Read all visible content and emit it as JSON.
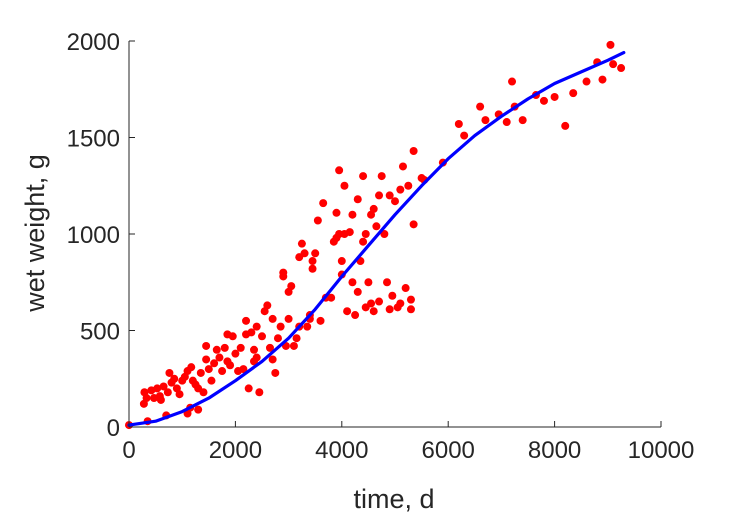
{
  "chart_data": {
    "type": "scatter",
    "xlabel": "time, d",
    "ylabel": "wet weight, g",
    "xlim": [
      0,
      10000
    ],
    "ylim": [
      0,
      2000
    ],
    "xticks": [
      0,
      2000,
      4000,
      6000,
      8000,
      10000
    ],
    "yticks": [
      0,
      500,
      1000,
      1500,
      2000
    ],
    "xtick_labels": [
      "0",
      "2000",
      "4000",
      "6000",
      "8000",
      "10000"
    ],
    "ytick_labels": [
      "0",
      "500",
      "1000",
      "1500",
      "2000"
    ],
    "grid": false,
    "series": [
      {
        "kind": "scatter",
        "color": "#ff0000",
        "points": [
          [
            0,
            10
          ],
          [
            280,
            120
          ],
          [
            290,
            180
          ],
          [
            330,
            150
          ],
          [
            350,
            30
          ],
          [
            420,
            190
          ],
          [
            470,
            150
          ],
          [
            530,
            200
          ],
          [
            580,
            160
          ],
          [
            600,
            140
          ],
          [
            650,
            210
          ],
          [
            700,
            60
          ],
          [
            730,
            180
          ],
          [
            760,
            280
          ],
          [
            800,
            230
          ],
          [
            850,
            250
          ],
          [
            900,
            200
          ],
          [
            950,
            170
          ],
          [
            1000,
            240
          ],
          [
            1050,
            260
          ],
          [
            1100,
            290
          ],
          [
            1100,
            70
          ],
          [
            1150,
            100
          ],
          [
            1170,
            310
          ],
          [
            1200,
            240
          ],
          [
            1250,
            220
          ],
          [
            1300,
            90
          ],
          [
            1300,
            200
          ],
          [
            1350,
            280
          ],
          [
            1400,
            180
          ],
          [
            1450,
            350
          ],
          [
            1450,
            420
          ],
          [
            1500,
            300
          ],
          [
            1550,
            240
          ],
          [
            1600,
            330
          ],
          [
            1650,
            400
          ],
          [
            1700,
            360
          ],
          [
            1750,
            290
          ],
          [
            1800,
            410
          ],
          [
            1850,
            480
          ],
          [
            1850,
            340
          ],
          [
            1900,
            320
          ],
          [
            1950,
            470
          ],
          [
            2000,
            380
          ],
          [
            2050,
            290
          ],
          [
            2100,
            410
          ],
          [
            2150,
            300
          ],
          [
            2200,
            480
          ],
          [
            2200,
            550
          ],
          [
            2250,
            200
          ],
          [
            2300,
            490
          ],
          [
            2350,
            340
          ],
          [
            2350,
            400
          ],
          [
            2400,
            520
          ],
          [
            2400,
            360
          ],
          [
            2450,
            180
          ],
          [
            2500,
            470
          ],
          [
            2550,
            600
          ],
          [
            2600,
            630
          ],
          [
            2650,
            410
          ],
          [
            2700,
            560
          ],
          [
            2700,
            350
          ],
          [
            2750,
            280
          ],
          [
            2800,
            460
          ],
          [
            2850,
            520
          ],
          [
            2900,
            800
          ],
          [
            2900,
            780
          ],
          [
            2950,
            420
          ],
          [
            3000,
            700
          ],
          [
            3000,
            560
          ],
          [
            3050,
            730
          ],
          [
            3100,
            420
          ],
          [
            3150,
            460
          ],
          [
            3200,
            520
          ],
          [
            3200,
            880
          ],
          [
            3250,
            950
          ],
          [
            3300,
            900
          ],
          [
            3350,
            520
          ],
          [
            3400,
            560
          ],
          [
            3400,
            580
          ],
          [
            3450,
            820
          ],
          [
            3450,
            860
          ],
          [
            3500,
            900
          ],
          [
            3550,
            1070
          ],
          [
            3600,
            550
          ],
          [
            3650,
            1160
          ],
          [
            3700,
            670
          ],
          [
            3800,
            670
          ],
          [
            3850,
            960
          ],
          [
            3900,
            1110
          ],
          [
            3900,
            980
          ],
          [
            3950,
            1000
          ],
          [
            3950,
            1330
          ],
          [
            4000,
            860
          ],
          [
            4000,
            790
          ],
          [
            4050,
            1000
          ],
          [
            4050,
            1250
          ],
          [
            4100,
            600
          ],
          [
            4150,
            1010
          ],
          [
            4200,
            1100
          ],
          [
            4200,
            750
          ],
          [
            4250,
            580
          ],
          [
            4300,
            700
          ],
          [
            4300,
            1180
          ],
          [
            4350,
            860
          ],
          [
            4400,
            1300
          ],
          [
            4400,
            960
          ],
          [
            4450,
            620
          ],
          [
            4450,
            1000
          ],
          [
            4500,
            750
          ],
          [
            4550,
            640
          ],
          [
            4550,
            1100
          ],
          [
            4600,
            1130
          ],
          [
            4600,
            600
          ],
          [
            4650,
            1040
          ],
          [
            4700,
            1200
          ],
          [
            4700,
            650
          ],
          [
            4750,
            1300
          ],
          [
            4800,
            1000
          ],
          [
            4850,
            750
          ],
          [
            4900,
            1200
          ],
          [
            4900,
            610
          ],
          [
            4950,
            680
          ],
          [
            5000,
            1170
          ],
          [
            5050,
            620
          ],
          [
            5100,
            1230
          ],
          [
            5100,
            640
          ],
          [
            5150,
            1350
          ],
          [
            5200,
            720
          ],
          [
            5250,
            1250
          ],
          [
            5300,
            660
          ],
          [
            5300,
            610
          ],
          [
            5350,
            1430
          ],
          [
            5350,
            1050
          ],
          [
            5500,
            1290
          ],
          [
            5550,
            1280
          ],
          [
            5900,
            1370
          ],
          [
            6200,
            1570
          ],
          [
            6300,
            1510
          ],
          [
            6600,
            1660
          ],
          [
            6700,
            1590
          ],
          [
            6950,
            1620
          ],
          [
            7100,
            1580
          ],
          [
            7200,
            1790
          ],
          [
            7250,
            1660
          ],
          [
            7400,
            1590
          ],
          [
            7650,
            1720
          ],
          [
            7800,
            1690
          ],
          [
            8000,
            1710
          ],
          [
            8200,
            1560
          ],
          [
            8350,
            1730
          ],
          [
            8600,
            1790
          ],
          [
            8800,
            1890
          ],
          [
            8900,
            1800
          ],
          [
            9050,
            1980
          ],
          [
            9100,
            1880
          ],
          [
            9250,
            1860
          ]
        ]
      },
      {
        "kind": "line",
        "color": "#0000ff",
        "points": [
          [
            0,
            10
          ],
          [
            500,
            30
          ],
          [
            1000,
            80
          ],
          [
            1500,
            150
          ],
          [
            2000,
            240
          ],
          [
            2500,
            340
          ],
          [
            3000,
            460
          ],
          [
            3500,
            610
          ],
          [
            4000,
            780
          ],
          [
            4500,
            940
          ],
          [
            5000,
            1100
          ],
          [
            5500,
            1250
          ],
          [
            6000,
            1390
          ],
          [
            6500,
            1510
          ],
          [
            7000,
            1610
          ],
          [
            7500,
            1700
          ],
          [
            8000,
            1780
          ],
          [
            8500,
            1840
          ],
          [
            9000,
            1900
          ],
          [
            9300,
            1940
          ]
        ]
      }
    ]
  }
}
